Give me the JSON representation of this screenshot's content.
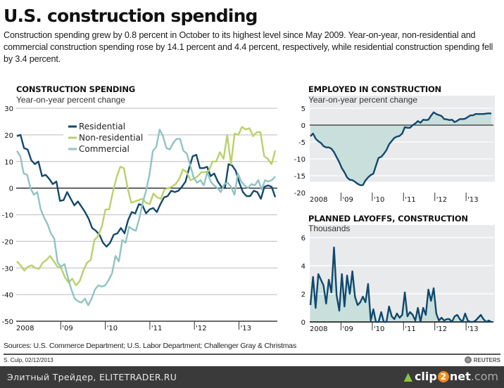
{
  "header": {
    "title": "U.S. construction spending",
    "subtitle": "Construction spending grew by 0.8 percent in October to its highest level since May 2009. Year-on-year, non-residential and commercial construction spending rose by 14.1 percent and 4.4 percent, respectively, while residential construction spending fell by 3.4 percent."
  },
  "footer": {
    "sources": "Sources: U.S. Commerce Department; U.S. Labor Department; Challenger Gray & Christmas",
    "credit": "S. Culp, 02/12/2013",
    "brand": "REUTERS"
  },
  "bottombar": {
    "watermark": "Элитный Трейдер, ELITETRADER.RU",
    "clip_a": "clip",
    "clip_two": "2",
    "clip_b": "net",
    "clip_dom": ".com"
  },
  "colors": {
    "residential": "#11496e",
    "non_residential": "#b9d16a",
    "commercial": "#92c3c3",
    "area_fill": "#c9dfdc",
    "panel_bg": "#e9eaec",
    "grid": "#c8c8c8"
  },
  "chart_data": [
    {
      "id": "construction",
      "type": "line",
      "title": "CONSTRUCTION SPENDING",
      "subtitle": "Year-on-year percent change",
      "xlabel": "",
      "ylabel": "Year-on-year percent change",
      "x_start": 2008.0,
      "x_end": 2013.83,
      "x_step_months": 1,
      "x_ticks": [
        {
          "value": 2008,
          "label": "2008"
        },
        {
          "value": 2009,
          "label": "'09"
        },
        {
          "value": 2010,
          "label": "'10"
        },
        {
          "value": 2011,
          "label": "'11"
        },
        {
          "value": 2012,
          "label": "'12"
        },
        {
          "value": 2013,
          "label": "'13"
        }
      ],
      "ylim": [
        -50,
        30
      ],
      "y_ticks": [
        30,
        20,
        10,
        0,
        -10,
        -20,
        -30,
        -40,
        -50
      ],
      "grid": true,
      "legend": "top-center",
      "series": [
        {
          "name": "Residential",
          "color_key": "residential",
          "values": [
            19.5,
            20,
            15,
            14.5,
            10.5,
            9,
            10,
            4.5,
            5,
            3.5,
            1.5,
            2.5,
            -4.8,
            -4.5,
            -1.5,
            -4,
            -6.5,
            -5,
            -7,
            -9,
            -11.5,
            -15,
            -16,
            -17.5,
            -20.5,
            -22,
            -20.5,
            -17.5,
            -17,
            -15,
            -17,
            -12,
            -9,
            -9.5,
            -6,
            -6.5,
            -9.5,
            -8,
            -7.5,
            -9,
            -6,
            -3.5,
            -3,
            -1,
            -1.5,
            -1,
            0.5,
            2.5,
            7.5,
            12,
            12.5,
            7.5,
            7.5,
            8,
            4.5,
            5.5,
            2.5,
            0.5,
            0,
            9,
            8.5,
            6.5,
            2,
            -1.5,
            -3,
            -3,
            -1,
            -1.5,
            -4,
            0.5,
            1,
            0.5,
            -3.4
          ]
        },
        {
          "name": "Non-residential",
          "color_key": "non_residential",
          "values": [
            -27.5,
            -29,
            -31,
            -29.5,
            -29,
            -30,
            -30.3,
            -28,
            -27,
            -25.5,
            -27.5,
            -29.5,
            -30,
            -33.5,
            -35.5,
            -34,
            -36.5,
            -35,
            -31,
            -28,
            -27,
            -19.5,
            -18,
            -14.5,
            -8,
            -8,
            -1.5,
            4,
            8,
            7.5,
            0,
            -5.5,
            -5,
            -4.5,
            -4,
            -5.5,
            -6,
            -2,
            -3.5,
            -4,
            -0.5,
            0,
            0.5,
            1.5,
            3.5,
            7,
            6,
            3,
            3.5,
            4.5,
            6,
            6,
            6.5,
            10,
            10,
            13.5,
            11,
            20,
            9,
            20.5,
            20,
            23,
            22,
            22.5,
            19.5,
            21,
            21,
            12,
            11,
            9,
            14.1
          ]
        },
        {
          "name": "Commercial",
          "color_key": "commercial",
          "values": [
            14,
            12,
            5.5,
            5,
            0,
            -2.5,
            -1.5,
            -8,
            -11,
            -13.5,
            -17,
            -19,
            -28,
            -29.5,
            -28.5,
            -33.5,
            -38,
            -41.5,
            -42.5,
            -43,
            -41.5,
            -44,
            -41.5,
            -38,
            -36.5,
            -37,
            -36.5,
            -34.5,
            -32,
            -25.5,
            -27.5,
            -19.5,
            -20.5,
            -14.5,
            -15.5,
            -16,
            -11.5,
            -5.5,
            -1,
            5,
            14,
            15.5,
            22,
            19.5,
            15,
            14.5,
            17,
            18.5,
            18.5,
            14,
            13,
            8.5,
            4,
            2,
            3,
            1,
            6,
            2.5,
            1,
            0,
            -1.5,
            1.5,
            2,
            0.5,
            -2.5,
            5.5,
            2.5,
            1,
            0,
            1.5,
            1,
            3,
            -0.5,
            3,
            2.5,
            3,
            4.4
          ]
        }
      ]
    },
    {
      "id": "employed",
      "type": "area",
      "title": "EMPLOYED IN CONSTRUCTION",
      "subtitle": "Year-on-year percent change",
      "x_start": 2008.0,
      "x_end": 2013.83,
      "x_ticks": [
        {
          "value": 2008,
          "label": "2008"
        },
        {
          "value": 2009,
          "label": "'09"
        },
        {
          "value": 2010,
          "label": "'10"
        },
        {
          "value": 2011,
          "label": "'11"
        },
        {
          "value": 2012,
          "label": "'12"
        },
        {
          "value": 2013,
          "label": "'13"
        }
      ],
      "ylim": [
        -20,
        5
      ],
      "y_ticks": [
        5,
        0,
        -5,
        -10,
        -15,
        -20
      ],
      "grid": true,
      "series": [
        {
          "name": "Employed in construction",
          "color_key": "residential",
          "values": [
            -3.3,
            -2.5,
            -4,
            -4.8,
            -5.3,
            -6.2,
            -6.6,
            -6.6,
            -7,
            -8,
            -9.5,
            -11,
            -12.8,
            -14,
            -15.5,
            -16.2,
            -16.3,
            -16.8,
            -17.4,
            -17.8,
            -17.8,
            -16.4,
            -15.5,
            -14.8,
            -14.4,
            -12,
            -9.7,
            -9.4,
            -8.5,
            -7.4,
            -5.7,
            -4.7,
            -3.8,
            -3.4,
            -3.2,
            -2.5,
            -0.6,
            -0.8,
            -0.8,
            0,
            0.5,
            1.2,
            0.7,
            1.6,
            1.5,
            1.6,
            2.8,
            3.8,
            3.3,
            3,
            2.7,
            1.8,
            1.7,
            1.5,
            1.6,
            0.9,
            1.3,
            1.8,
            1.8,
            1.9,
            2.4,
            2.9,
            2.9,
            3.3,
            3.3,
            3.3,
            3.3,
            3.4,
            3.5,
            3.4
          ]
        }
      ]
    },
    {
      "id": "layoffs",
      "type": "area",
      "title": "PLANNED LAYOFFS, CONSTRUCTION",
      "subtitle": "Thousands",
      "x_start": 2008.0,
      "x_end": 2013.83,
      "x_ticks": [
        {
          "value": 2008,
          "label": "2008"
        },
        {
          "value": 2009,
          "label": "'09"
        },
        {
          "value": 2010,
          "label": "'10"
        },
        {
          "value": 2011,
          "label": "'11"
        },
        {
          "value": 2012,
          "label": "'12"
        },
        {
          "value": 2013,
          "label": "'13"
        }
      ],
      "ylim": [
        0,
        6
      ],
      "y_ticks": [
        6,
        4,
        2,
        0
      ],
      "grid": true,
      "series": [
        {
          "name": "Planned layoffs",
          "color_key": "residential",
          "values": [
            1.2,
            3.2,
            1.0,
            3.4,
            3.0,
            2.6,
            1.3,
            3.0,
            2.1,
            5.3,
            1.9,
            0.8,
            3.4,
            1.1,
            3.3,
            2.0,
            3.6,
            1.8,
            1.2,
            1.4,
            1.8,
            1.4,
            2.7,
            0.1,
            0.9,
            0,
            0,
            0.7,
            0,
            0,
            1.1,
            0.4,
            0.2,
            0.6,
            0.3,
            0.5,
            2.1,
            0.4,
            0.7,
            0.5,
            0.1,
            1.0,
            0,
            1.0,
            0.5,
            2.3,
            1.5,
            2.4,
            0.6,
            0.1,
            0.3,
            0.1,
            0.2,
            0.2,
            0,
            0.4,
            0.5,
            0.2,
            0,
            0.6,
            0.1,
            0,
            0,
            0.1,
            0.3,
            0.5,
            0.2,
            0,
            0.1,
            0
          ]
        }
      ]
    }
  ]
}
